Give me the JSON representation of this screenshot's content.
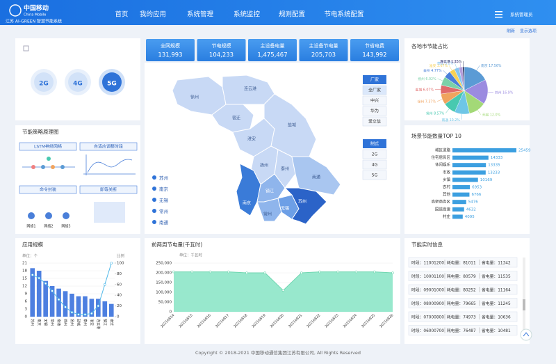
{
  "header": {
    "logo": "中国移动",
    "logo_en": "China Mobile",
    "system": "江苏 AI-GREEN 智慧节能系统",
    "nav": [
      "首页",
      "我的应用",
      "系统管理",
      "系统监控",
      "规则配置",
      "节电系统配置"
    ],
    "user": "系统管理员"
  },
  "toolbar": [
    "刷新",
    "显示选项"
  ],
  "network_types": [
    "2G",
    "4G",
    "5G"
  ],
  "active_network": "5G",
  "strategy": {
    "title": "节能策略原理图",
    "steps": [
      "LSTM神经网络",
      "自适应调整时段",
      "命令封装",
      "即等关断"
    ],
    "cells": [
      "网络1",
      "网络2",
      "网络3"
    ]
  },
  "kpis": [
    {
      "label": "全网规模",
      "value": "131,993"
    },
    {
      "label": "节电规模",
      "value": "104,233"
    },
    {
      "label": "主设备电量",
      "value": "1,475,467"
    },
    {
      "label": "主设备节电量",
      "value": "205,703"
    },
    {
      "label": "节省电费",
      "value": "143,992"
    }
  ],
  "map": {
    "cities": [
      "徐州",
      "连云港",
      "宿迁",
      "淮安",
      "盐城",
      "扬州",
      "泰州",
      "南通",
      "南京",
      "镇江",
      "常州",
      "无锡",
      "苏州"
    ],
    "legend": [
      "苏州",
      "南京",
      "无锡",
      "常州",
      "南通"
    ]
  },
  "filters": {
    "vendor_title": "厂家",
    "vendors": [
      "全厂家",
      "中兴",
      "华为",
      "爱立信"
    ],
    "mode_title": "制式",
    "modes": [
      "2G",
      "4G",
      "5G"
    ]
  },
  "chart_data": [
    {
      "type": "pie",
      "title": "各地市节能占比",
      "categories": [
        "南京",
        "苏州",
        "无锡",
        "南通",
        "常州",
        "徐州",
        "盐城",
        "扬州",
        "泰州",
        "淮安",
        "宿迁",
        "镇江",
        "连云港"
      ],
      "values": [
        17.56,
        16.9,
        12.0,
        10.2,
        8.57,
        7.37,
        6.07,
        6.02,
        4.77,
        3.67,
        3.2,
        2.52,
        1.15
      ],
      "value_labels": [
        "17.56%",
        "16.9%",
        "12.0%",
        "10.2%",
        "8.57%",
        "7.37%",
        "6.07%",
        "6.02%",
        "4.77%",
        "3.67%",
        "3.2%",
        "2.52%",
        "1.15%"
      ],
      "colors": [
        "#5b9bd5",
        "#9b8be0",
        "#a3d977",
        "#6ec6e6",
        "#48c9b0",
        "#f0a35e",
        "#e06a6a",
        "#7bd1a8",
        "#4a7fd9",
        "#f7d154",
        "#86c5f0",
        "#b39ddb",
        "#333c66"
      ]
    },
    {
      "type": "hbar",
      "title": "场景节能数量TOP 10",
      "categories": [
        "城区道路",
        "住宅居民区",
        "休闲娱乐",
        "市政",
        "乡镇",
        "农村",
        "其他",
        "高架商务区",
        "国道高速",
        "村庄"
      ],
      "values": [
        25459,
        14333,
        13335,
        13233,
        10169,
        6953,
        6766,
        5476,
        4632,
        4095
      ],
      "color": "#3c9fe0"
    },
    {
      "type": "bar-line",
      "title": "应用规模",
      "y_label": "单位：个",
      "y2_label": "比例",
      "categories": [
        "苏州",
        "南京",
        "无锡",
        "常州",
        "南通",
        "徐州",
        "扬州",
        "盐城",
        "泰州",
        "淮安",
        "连云港",
        "镇江",
        "宿迁"
      ],
      "series": [
        {
          "color": "#4d7fe0",
          "values": [
            19,
            18,
            14,
            12,
            11,
            10,
            9,
            8,
            8,
            7,
            7,
            6,
            5
          ]
        },
        {
          "color": "#4fb8e8",
          "axis": "y2",
          "values": [
            78,
            72,
            62,
            48,
            32,
            18,
            8,
            4,
            4,
            6,
            20,
            60,
            100
          ]
        }
      ],
      "ylim": [
        0,
        21
      ],
      "yticks": [
        0,
        3,
        6,
        9,
        12,
        15,
        18,
        21
      ],
      "y2lim": [
        0,
        100
      ],
      "y2ticks": [
        0,
        20,
        40,
        60,
        80,
        100
      ]
    },
    {
      "type": "area",
      "title": "前两周节电量(千瓦时)",
      "y_label": "单位：千瓦时",
      "x": [
        "20210814",
        "20210815",
        "20210816",
        "20210817",
        "20210818",
        "20210819",
        "20210820",
        "20210821",
        "20210822",
        "20210823",
        "20210824",
        "20210825",
        "20210826"
      ],
      "values": [
        205000,
        205000,
        205000,
        205000,
        200000,
        200000,
        110000,
        200000,
        205000,
        205000,
        205000,
        205000,
        200000
      ],
      "color": "#8de6c8",
      "ylim": [
        0,
        250000
      ],
      "yticks": [
        0,
        {
          "value": 50000,
          "label": "50,000"
        },
        {
          "value": 100000,
          "label": "100,000"
        },
        {
          "value": 150000,
          "label": "150,000"
        },
        {
          "value": 200000,
          "label": "200,000"
        },
        {
          "value": 250000,
          "label": "250,000"
        }
      ]
    }
  ],
  "realtime": {
    "title": "节能实时信息",
    "labels": [
      "时段：",
      "耗电量：",
      "省电量："
    ],
    "rows": [
      [
        "11001200",
        "81011",
        "11342"
      ],
      [
        "10001100",
        "80579",
        "11535"
      ],
      [
        "09001000",
        "80252",
        "11164"
      ],
      [
        "08000900",
        "79665",
        "11245"
      ],
      [
        "07000800",
        "74973",
        "10636"
      ],
      [
        "06000700",
        "76487",
        "10481"
      ]
    ]
  },
  "footer": "Copyright © 2018-2021 中国移动通信集团江苏有限公司, All Rights Reserved"
}
